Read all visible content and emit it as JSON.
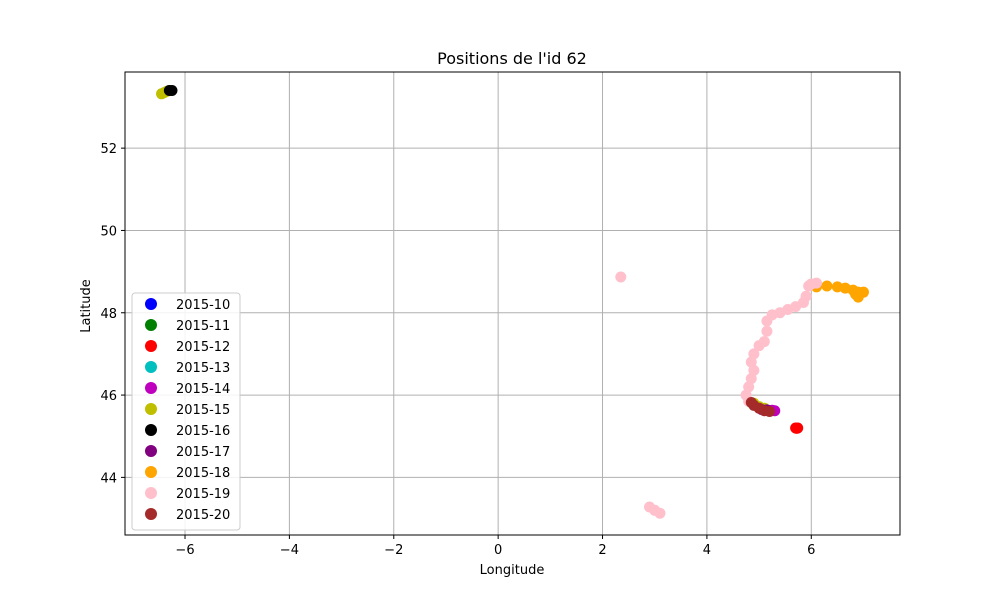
{
  "chart_data": {
    "type": "scatter",
    "title": "Positions de l'id 62",
    "xlabel": "Longitude",
    "ylabel": "Latitude",
    "xlim": [
      -7.15,
      7.7
    ],
    "ylim": [
      42.6,
      53.85
    ],
    "xticks": [
      -6,
      -4,
      -2,
      0,
      2,
      4,
      6
    ],
    "xtick_labels": [
      "−6",
      "−4",
      "−2",
      "0",
      "2",
      "4",
      "6"
    ],
    "yticks": [
      44,
      46,
      48,
      50,
      52
    ],
    "ytick_labels": [
      "44",
      "46",
      "48",
      "50",
      "52"
    ],
    "grid": true,
    "legend_position": "lower-left",
    "series": [
      {
        "name": "2015-10",
        "color": "#0000ff",
        "points": []
      },
      {
        "name": "2015-11",
        "color": "#008000",
        "points": []
      },
      {
        "name": "2015-12",
        "color": "#ff0000",
        "points": [
          [
            5.7,
            45.2
          ],
          [
            5.72,
            45.19
          ],
          [
            5.74,
            45.2
          ]
        ]
      },
      {
        "name": "2015-13",
        "color": "#00bfbf",
        "points": []
      },
      {
        "name": "2015-14",
        "color": "#bf00bf",
        "points": [
          [
            5.2,
            45.62
          ],
          [
            5.25,
            45.63
          ],
          [
            5.3,
            45.62
          ]
        ]
      },
      {
        "name": "2015-15",
        "color": "#bfbf00",
        "points": [
          [
            -6.45,
            53.32
          ],
          [
            -6.4,
            53.35
          ],
          [
            -6.35,
            53.38
          ],
          [
            -6.3,
            53.4
          ],
          [
            4.9,
            45.8
          ],
          [
            5.0,
            45.72
          ],
          [
            5.1,
            45.68
          ]
        ]
      },
      {
        "name": "2015-16",
        "color": "#000000",
        "points": [
          [
            -6.3,
            53.4
          ],
          [
            -6.25,
            53.4
          ]
        ]
      },
      {
        "name": "2015-17",
        "color": "#800080",
        "points": [
          [
            5.05,
            45.65
          ],
          [
            5.15,
            45.64
          ]
        ]
      },
      {
        "name": "2015-18",
        "color": "#ffa500",
        "points": [
          [
            6.1,
            48.63
          ],
          [
            6.3,
            48.65
          ],
          [
            6.5,
            48.63
          ],
          [
            6.65,
            48.6
          ],
          [
            6.8,
            48.55
          ],
          [
            6.9,
            48.5
          ],
          [
            7.0,
            48.5
          ],
          [
            6.9,
            48.38
          ],
          [
            6.85,
            48.45
          ]
        ]
      },
      {
        "name": "2015-19",
        "color": "#ffc0cb",
        "points": [
          [
            2.35,
            48.87
          ],
          [
            2.9,
            43.28
          ],
          [
            3.0,
            43.2
          ],
          [
            3.1,
            43.13
          ],
          [
            6.0,
            48.7
          ],
          [
            6.1,
            48.72
          ],
          [
            5.95,
            48.65
          ],
          [
            5.9,
            48.4
          ],
          [
            5.85,
            48.25
          ],
          [
            5.7,
            48.15
          ],
          [
            5.55,
            48.08
          ],
          [
            5.4,
            48.0
          ],
          [
            5.25,
            47.95
          ],
          [
            5.15,
            47.8
          ],
          [
            5.15,
            47.55
          ],
          [
            5.1,
            47.3
          ],
          [
            5.0,
            47.2
          ],
          [
            4.9,
            47.0
          ],
          [
            4.85,
            46.8
          ],
          [
            4.9,
            46.6
          ],
          [
            4.85,
            46.4
          ],
          [
            4.8,
            46.2
          ],
          [
            4.75,
            46.0
          ],
          [
            4.8,
            45.85
          ]
        ]
      },
      {
        "name": "2015-20",
        "color": "#a52a2a",
        "points": [
          [
            4.85,
            45.82
          ],
          [
            4.9,
            45.75
          ],
          [
            5.0,
            45.68
          ],
          [
            5.1,
            45.62
          ],
          [
            5.2,
            45.6
          ]
        ]
      }
    ]
  }
}
